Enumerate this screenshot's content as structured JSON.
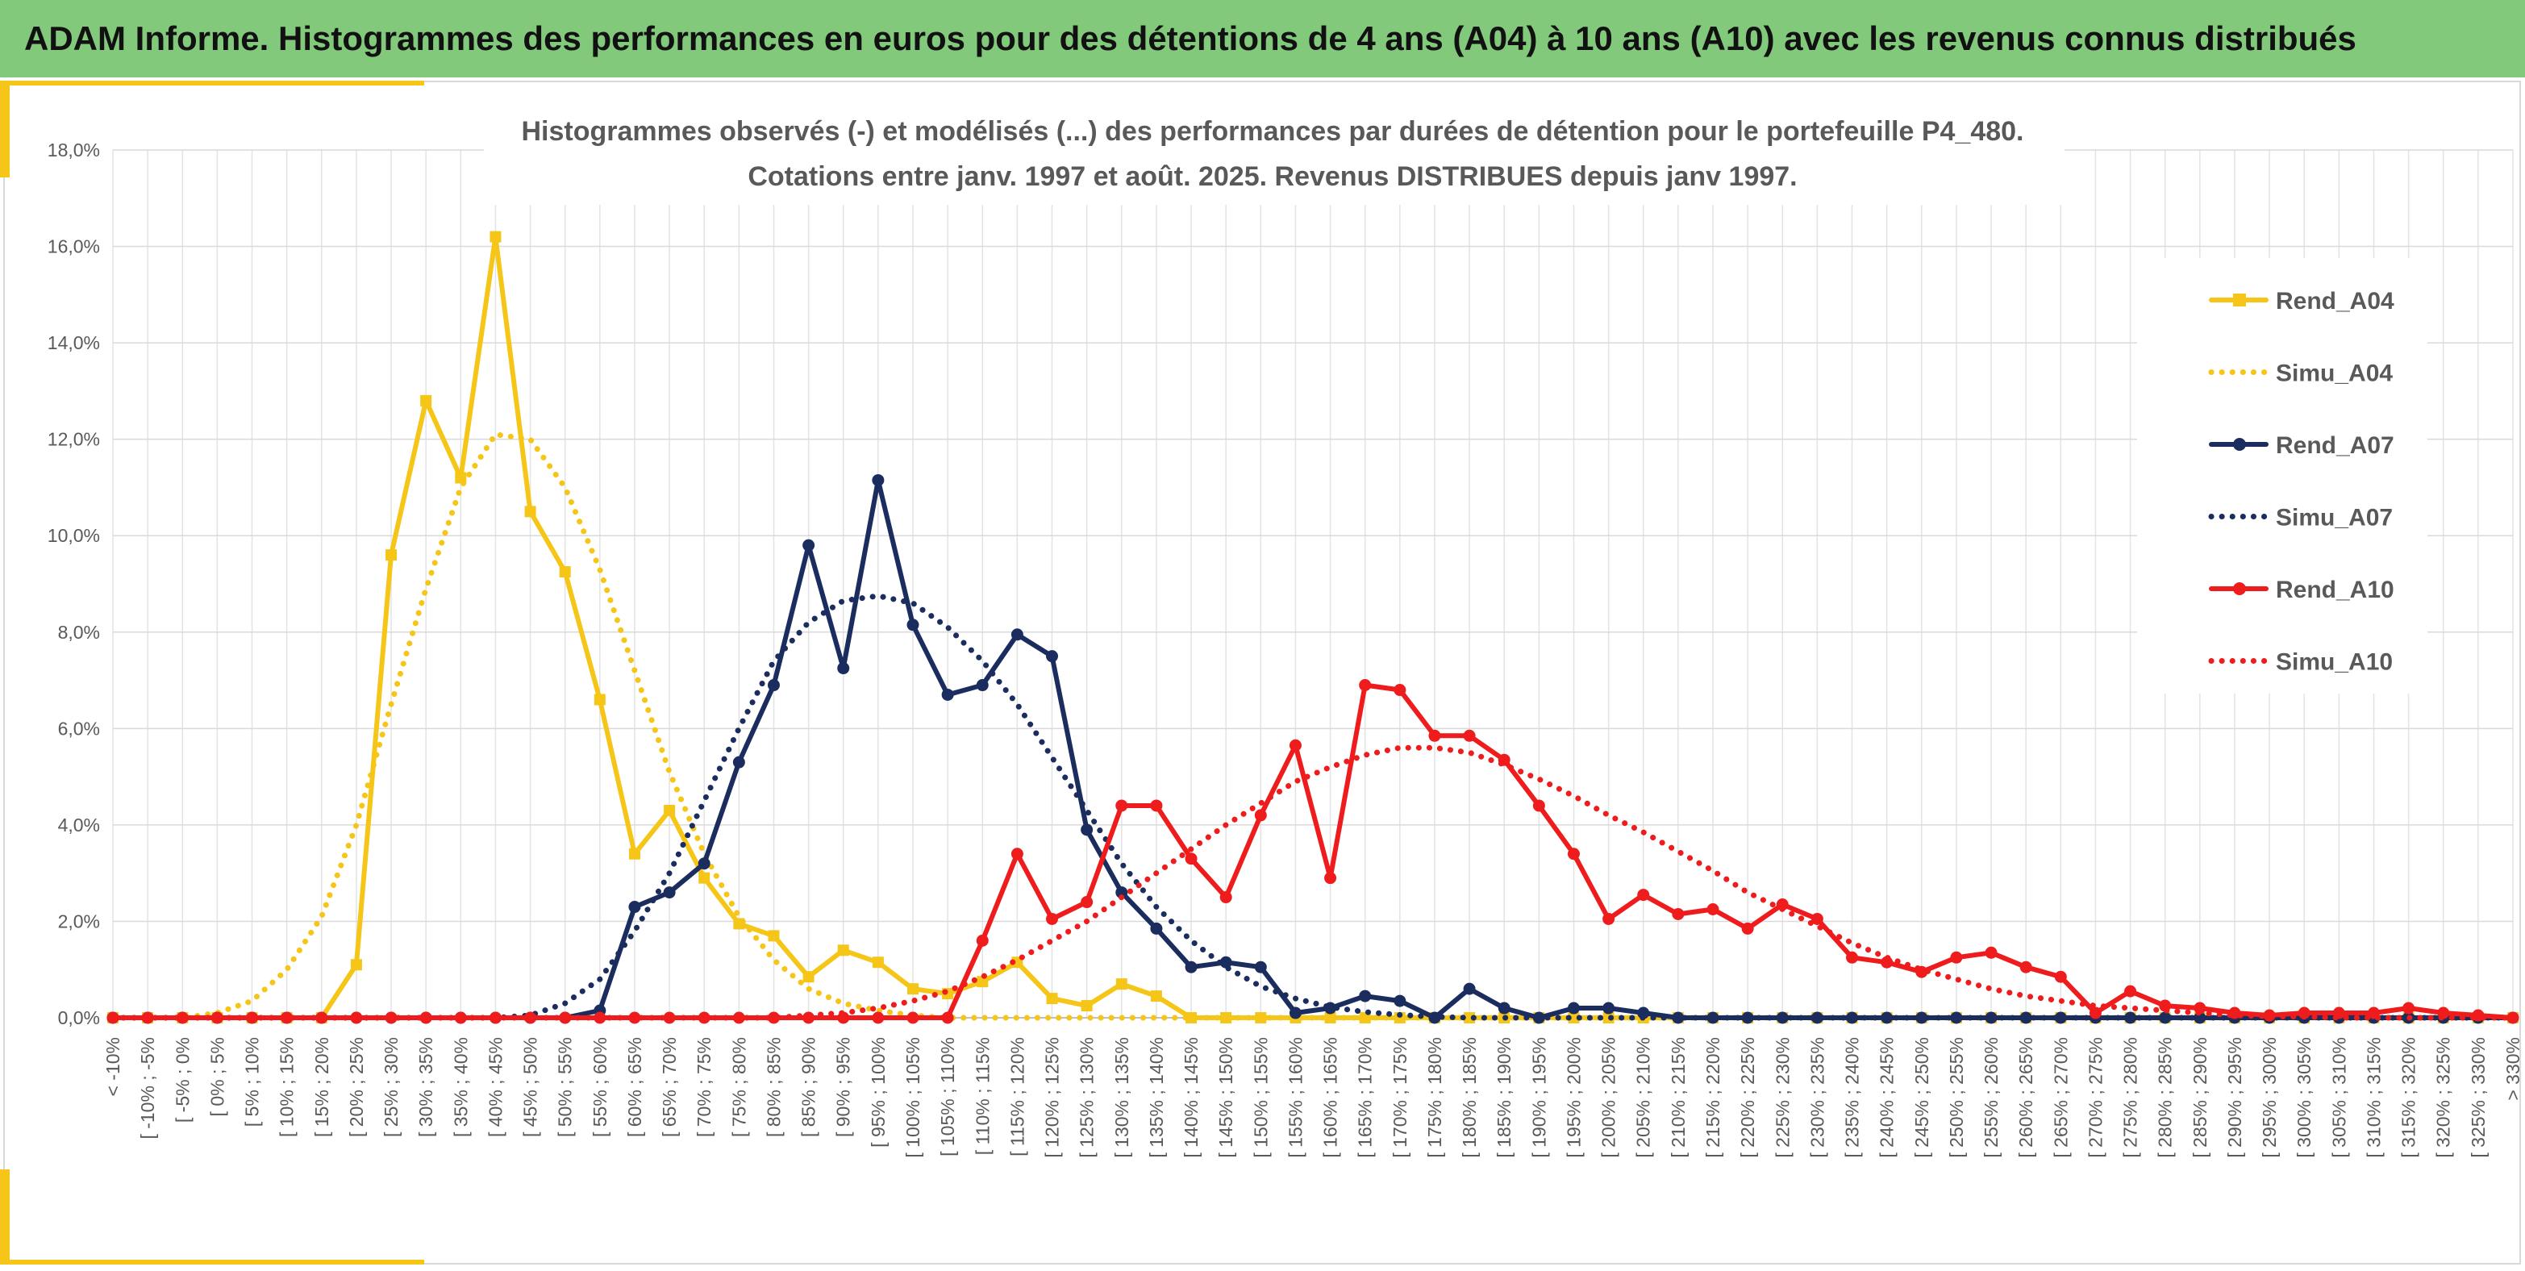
{
  "header": {
    "title": "ADAM Informe. Histogrammes des performances en euros pour des détentions de 4 ans (A04) à 10 ans (A10) avec les revenus connus distribués"
  },
  "chart_data": {
    "type": "line",
    "title_lines": [
      "Histogrammes observés (-) et modélisés (...) des performances par durées de détention pour le portefeuille P4_480.",
      "Cotations entre janv. 1997 et août. 2025. Revenus DISTRIBUES depuis janv 1997."
    ],
    "ylim": [
      0,
      18
    ],
    "yticks": [
      "0,0%",
      "2,0%",
      "4,0%",
      "6,0%",
      "8,0%",
      "10,0%",
      "12,0%",
      "14,0%",
      "16,0%",
      "18,0%"
    ],
    "grid": true,
    "legend_position": "right",
    "categories": [
      "< -10%",
      "[ -10% ; -5%",
      "[ -5% ; 0%",
      "[ 0% ; 5%",
      "[ 5% ; 10%",
      "[ 10% ; 15%",
      "[ 15% ; 20%",
      "[ 20% ; 25%",
      "[ 25% ; 30%",
      "[ 30% ; 35%",
      "[ 35% ; 40%",
      "[ 40% ; 45%",
      "[ 45% ; 50%",
      "[ 50% ; 55%",
      "[ 55% ; 60%",
      "[ 60% ; 65%",
      "[ 65% ; 70%",
      "[ 70% ; 75%",
      "[ 75% ; 80%",
      "[ 80% ; 85%",
      "[ 85% ; 90%",
      "[ 90% ; 95%",
      "[ 95% ; 100%",
      "[ 100% ; 105%",
      "[ 105% ; 110%",
      "[ 110% ; 115%",
      "[ 115% ; 120%",
      "[ 120% ; 125%",
      "[ 125% ; 130%",
      "[ 130% ; 135%",
      "[ 135% ; 140%",
      "[ 140% ; 145%",
      "[ 145% ; 150%",
      "[ 150% ; 155%",
      "[ 155% ; 160%",
      "[ 160% ; 165%",
      "[ 165% ; 170%",
      "[ 170% ; 175%",
      "[ 175% ; 180%",
      "[ 180% ; 185%",
      "[ 185% ; 190%",
      "[ 190% ; 195%",
      "[ 195% ; 200%",
      "[ 200% ; 205%",
      "[ 205% ; 210%",
      "[ 210% ; 215%",
      "[ 215% ; 220%",
      "[ 220% ; 225%",
      "[ 225% ; 230%",
      "[ 230% ; 235%",
      "[ 235% ; 240%",
      "[ 240% ; 245%",
      "[ 245% ; 250%",
      "[ 250% ; 255%",
      "[ 255% ; 260%",
      "[ 260% ; 265%",
      "[ 265% ; 270%",
      "[ 270% ; 275%",
      "[ 275% ; 280%",
      "[ 280% ; 285%",
      "[ 285% ; 290%",
      "[ 290% ; 295%",
      "[ 295% ; 300%",
      "[ 300% ; 305%",
      "[ 305% ; 310%",
      "[ 310% ; 315%",
      "[ 315% ; 320%",
      "[ 320% ; 325%",
      "[ 325% ; 330%",
      "> 330%"
    ],
    "series": [
      {
        "name": "Rend_A04",
        "color": "#f5c518",
        "style": "solid",
        "marker": "square",
        "values": [
          0,
          0,
          0,
          0,
          0,
          0,
          0,
          1.1,
          9.6,
          12.8,
          11.2,
          16.2,
          10.5,
          9.25,
          6.6,
          3.4,
          4.3,
          2.9,
          1.95,
          1.7,
          0.85,
          1.4,
          1.15,
          0.6,
          0.5,
          0.75,
          1.15,
          0.4,
          0.25,
          0.7,
          0.45,
          0,
          0,
          0,
          0,
          0,
          0,
          0,
          0,
          0,
          0,
          0,
          0,
          0,
          0,
          0,
          0,
          0,
          0,
          0,
          0,
          0,
          0,
          0,
          0,
          0,
          0,
          0,
          0,
          0,
          0,
          0,
          0,
          0,
          0,
          0,
          0,
          0,
          0,
          0
        ]
      },
      {
        "name": "Simu_A04",
        "color": "#f5c518",
        "style": "dotted",
        "marker": "none",
        "values": [
          0,
          0,
          0,
          0.1,
          0.35,
          1,
          2.1,
          4,
          6.5,
          8.9,
          11,
          12.1,
          12,
          11,
          9.3,
          7.2,
          5.1,
          3.4,
          2.1,
          1.2,
          0.6,
          0.3,
          0.15,
          0.05,
          0,
          0,
          0,
          0,
          0,
          0,
          0,
          0,
          0,
          0,
          0,
          0,
          0,
          0,
          0,
          0,
          0,
          0,
          0,
          0,
          0,
          0,
          0,
          0,
          0,
          0,
          0,
          0,
          0,
          0,
          0,
          0,
          0,
          0,
          0,
          0,
          0,
          0,
          0,
          0,
          0,
          0,
          0,
          0,
          0,
          0
        ]
      },
      {
        "name": "Rend_A07",
        "color": "#1b2d5e",
        "style": "solid",
        "marker": "circle",
        "values": [
          0,
          0,
          0,
          0,
          0,
          0,
          0,
          0,
          0,
          0,
          0,
          0,
          0,
          0,
          0.15,
          2.3,
          2.6,
          3.2,
          5.3,
          6.9,
          9.8,
          7.25,
          11.15,
          8.15,
          6.7,
          6.9,
          7.95,
          7.5,
          3.9,
          2.6,
          1.85,
          1.05,
          1.15,
          1.05,
          0.1,
          0.2,
          0.45,
          0.35,
          0,
          0.6,
          0.2,
          0,
          0.2,
          0.2,
          0.1,
          0,
          0,
          0,
          0,
          0,
          0,
          0,
          0,
          0,
          0,
          0,
          0,
          0,
          0,
          0,
          0,
          0,
          0,
          0,
          0,
          0,
          0,
          0,
          0,
          0
        ]
      },
      {
        "name": "Simu_A07",
        "color": "#1b2d5e",
        "style": "dotted",
        "marker": "none",
        "values": [
          0,
          0,
          0,
          0,
          0,
          0,
          0,
          0,
          0,
          0,
          0,
          0,
          0.05,
          0.3,
          0.8,
          1.8,
          3,
          4.5,
          6,
          7.4,
          8.2,
          8.65,
          8.75,
          8.6,
          8.1,
          7.4,
          6.5,
          5.4,
          4.3,
          3.2,
          2.3,
          1.6,
          1.05,
          0.65,
          0.4,
          0.22,
          0.12,
          0.06,
          0.02,
          0,
          0,
          0,
          0,
          0,
          0,
          0,
          0,
          0,
          0,
          0,
          0,
          0,
          0,
          0,
          0,
          0,
          0,
          0,
          0,
          0,
          0,
          0,
          0,
          0,
          0,
          0,
          0,
          0,
          0,
          0
        ]
      },
      {
        "name": "Rend_A10",
        "color": "#ee1c1c",
        "style": "solid",
        "marker": "circle",
        "values": [
          0,
          0,
          0,
          0,
          0,
          0,
          0,
          0,
          0,
          0,
          0,
          0,
          0,
          0,
          0,
          0,
          0,
          0,
          0,
          0,
          0,
          0,
          0,
          0,
          0,
          1.6,
          3.4,
          2.05,
          2.4,
          4.4,
          4.4,
          3.3,
          2.5,
          4.2,
          5.65,
          2.9,
          6.9,
          6.8,
          5.85,
          5.85,
          5.35,
          4.4,
          3.4,
          2.05,
          2.55,
          2.15,
          2.25,
          1.85,
          2.35,
          2.05,
          1.25,
          1.15,
          0.95,
          1.25,
          1.35,
          1.05,
          0.85,
          0.1,
          0.55,
          0.25,
          0.2,
          0.1,
          0.05,
          0.1,
          0.1,
          0.1,
          0.2,
          0.1,
          0.05,
          0
        ]
      },
      {
        "name": "Simu_A10",
        "color": "#ee1c1c",
        "style": "dotted",
        "marker": "none",
        "values": [
          0,
          0,
          0,
          0,
          0,
          0,
          0,
          0,
          0,
          0,
          0,
          0,
          0,
          0,
          0,
          0,
          0,
          0,
          0,
          0,
          0.05,
          0.1,
          0.2,
          0.35,
          0.55,
          0.85,
          1.2,
          1.6,
          2,
          2.5,
          3,
          3.5,
          4,
          4.45,
          4.9,
          5.2,
          5.45,
          5.6,
          5.6,
          5.5,
          5.25,
          4.95,
          4.6,
          4.2,
          3.85,
          3.45,
          3.05,
          2.6,
          2.25,
          1.9,
          1.55,
          1.25,
          1,
          0.8,
          0.6,
          0.45,
          0.35,
          0.25,
          0.2,
          0.15,
          0.1,
          0.05,
          0.03,
          0.02,
          0,
          0,
          0,
          0,
          0,
          0
        ]
      }
    ]
  }
}
